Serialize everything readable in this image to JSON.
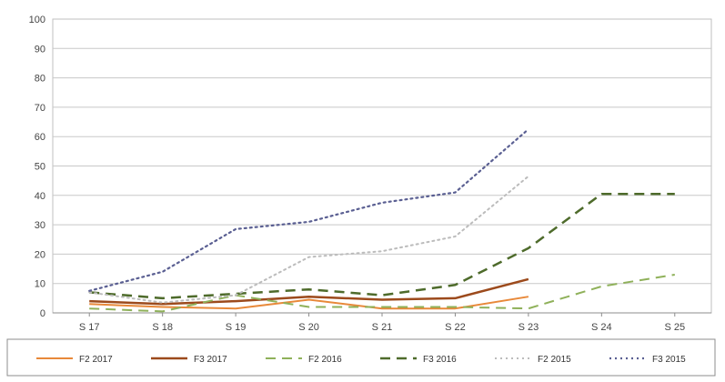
{
  "chart_data": {
    "type": "line",
    "categories": [
      "S 17",
      "S 18",
      "S 19",
      "S 20",
      "S 21",
      "S 22",
      "S 23",
      "S 24",
      "S 25"
    ],
    "ylim": [
      0,
      100
    ],
    "yticks": [
      0,
      10,
      20,
      30,
      40,
      50,
      60,
      70,
      80,
      90,
      100
    ],
    "grid": true,
    "legend_position": "bottom",
    "series": [
      {
        "name": "F2 2017",
        "color": "#e8893a",
        "dash": "solid",
        "width": 2,
        "values": [
          3,
          2,
          1.5,
          4.5,
          1.5,
          1.5,
          5.5,
          null,
          null
        ]
      },
      {
        "name": "F3 2017",
        "color": "#9c4a1c",
        "dash": "solid",
        "width": 2.5,
        "values": [
          4,
          3,
          4,
          5.5,
          4.5,
          5,
          11.5,
          null,
          null
        ]
      },
      {
        "name": "F2 2016",
        "color": "#8fb15a",
        "dash": "dashed",
        "width": 2,
        "values": [
          1.5,
          0.5,
          6,
          2,
          2,
          2,
          1.5,
          9,
          13
        ]
      },
      {
        "name": "F3 2016",
        "color": "#4e6b2b",
        "dash": "dashed",
        "width": 2.5,
        "values": [
          7,
          5,
          6.5,
          8,
          6,
          9.5,
          22,
          40.5,
          40.5
        ]
      },
      {
        "name": "F2 2015",
        "color": "#bcbcbc",
        "dash": "dotted",
        "width": 2,
        "values": [
          7,
          3.5,
          6,
          19,
          21,
          26,
          46.5,
          null,
          null
        ]
      },
      {
        "name": "F3 2015",
        "color": "#5a5f92",
        "dash": "dotted",
        "width": 2.2,
        "values": [
          7.5,
          14,
          28.5,
          31,
          37.5,
          41,
          62.5,
          null,
          null
        ]
      }
    ]
  }
}
